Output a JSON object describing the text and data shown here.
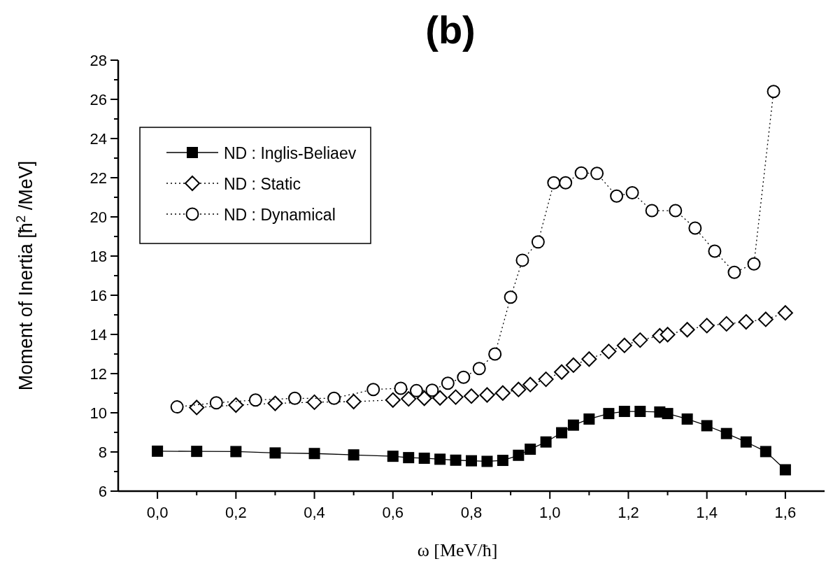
{
  "chart_data": {
    "type": "line",
    "title": "(b)",
    "xlabel": "ω [MeV/ħ]",
    "ylabel": "Moment of Inertia [ħ$^{2}$ /MeV]",
    "xlim": [
      -0.1,
      1.7
    ],
    "ylim": [
      6,
      28
    ],
    "xticks": [
      {
        "value": 0,
        "label": "0,0"
      },
      {
        "value": 0.1,
        "label": null
      },
      {
        "value": 0.2,
        "label": "0,2"
      },
      {
        "value": 0.3,
        "label": null
      },
      {
        "value": 0.4,
        "label": "0,4"
      },
      {
        "value": 0.5,
        "label": null
      },
      {
        "value": 0.6,
        "label": "0,6"
      },
      {
        "value": 0.7,
        "label": null
      },
      {
        "value": 0.8,
        "label": "0,8"
      },
      {
        "value": 0.9,
        "label": null
      },
      {
        "value": 1.0,
        "label": "1,0"
      },
      {
        "value": 1.1,
        "label": null
      },
      {
        "value": 1.2,
        "label": "1,2"
      },
      {
        "value": 1.3,
        "label": null
      },
      {
        "value": 1.4,
        "label": "1,4"
      },
      {
        "value": 1.5,
        "label": null
      },
      {
        "value": 1.6,
        "label": "1,6"
      }
    ],
    "yticks": [
      6,
      {
        "value": 7,
        "label": null
      },
      8,
      {
        "value": 9,
        "label": null
      },
      10,
      {
        "value": 11,
        "label": null
      },
      12,
      {
        "value": 13,
        "label": null
      },
      14,
      {
        "value": 15,
        "label": null
      },
      16,
      {
        "value": 17,
        "label": null
      },
      18,
      {
        "value": 19,
        "label": null
      },
      20,
      {
        "value": 21,
        "label": null
      },
      22,
      {
        "value": 23,
        "label": null
      },
      24,
      {
        "value": 25,
        "label": null
      },
      26,
      {
        "value": 27,
        "label": null
      },
      28
    ],
    "legend": "top left",
    "series": [
      {
        "name": "ND : Inglis-Beliaev",
        "color": "#000000",
        "marker": "square",
        "line_style": "solid",
        "x": [
          0,
          0.1,
          0.2,
          0.3,
          0.4,
          0.5,
          0.6,
          0.64,
          0.68,
          0.72,
          0.76,
          0.8,
          0.84,
          0.88,
          0.92,
          0.95,
          0.99,
          1.03,
          1.06,
          1.1,
          1.15,
          1.19,
          1.23,
          1.28,
          1.3,
          1.35,
          1.4,
          1.45,
          1.5,
          1.55,
          1.6
        ],
        "values": [
          8.04,
          8.03,
          8.02,
          7.95,
          7.92,
          7.85,
          7.78,
          7.71,
          7.68,
          7.63,
          7.58,
          7.55,
          7.52,
          7.57,
          7.83,
          8.14,
          8.51,
          8.98,
          9.37,
          9.68,
          9.96,
          10.07,
          10.07,
          10.04,
          9.96,
          9.68,
          9.34,
          8.94,
          8.51,
          8.02,
          7.09
        ]
      },
      {
        "name": "ND : Static",
        "color": "#000000",
        "marker": "diamond",
        "line_style": "dotted",
        "x": [
          0.1,
          0.2,
          0.3,
          0.4,
          0.5,
          0.6,
          0.64,
          0.68,
          0.72,
          0.76,
          0.8,
          0.84,
          0.88,
          0.92,
          0.95,
          0.99,
          1.03,
          1.06,
          1.1,
          1.15,
          1.19,
          1.23,
          1.28,
          1.3,
          1.35,
          1.4,
          1.45,
          1.5,
          1.55,
          1.6
        ],
        "values": [
          10.27,
          10.39,
          10.48,
          10.54,
          10.57,
          10.65,
          10.71,
          10.74,
          10.76,
          10.8,
          10.85,
          10.91,
          11.01,
          11.19,
          11.44,
          11.71,
          12.08,
          12.43,
          12.74,
          13.13,
          13.44,
          13.71,
          13.93,
          13.99,
          14.24,
          14.45,
          14.54,
          14.64,
          14.77,
          15.1
        ]
      },
      {
        "name": "ND : Dynamical",
        "color": "#000000",
        "marker": "circle",
        "line_style": "dotted",
        "x": [
          0.05,
          0.15,
          0.25,
          0.35,
          0.45,
          0.55,
          0.62,
          0.66,
          0.7,
          0.74,
          0.78,
          0.82,
          0.86,
          0.9,
          0.93,
          0.97,
          1.01,
          1.04,
          1.08,
          1.12,
          1.17,
          1.21,
          1.26,
          1.32,
          1.37,
          1.42,
          1.47,
          1.52,
          1.57
        ],
        "values": [
          10.3,
          10.51,
          10.65,
          10.74,
          10.74,
          11.19,
          11.25,
          11.13,
          11.15,
          11.51,
          11.81,
          12.26,
          13.0,
          15.9,
          17.79,
          18.72,
          21.74,
          21.74,
          22.24,
          22.22,
          21.06,
          21.23,
          20.32,
          20.32,
          19.43,
          18.25,
          17.17,
          17.6,
          26.4
        ]
      }
    ]
  }
}
